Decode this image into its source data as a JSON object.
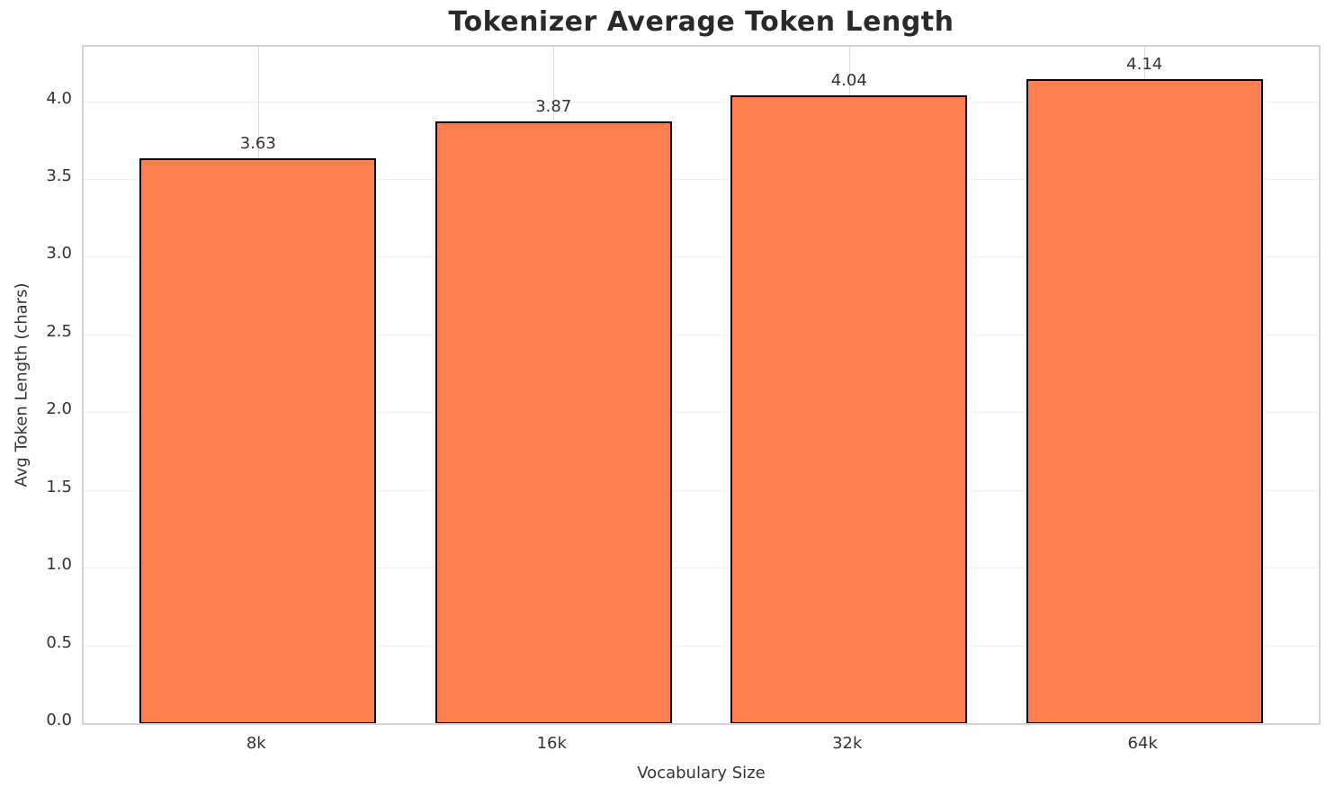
{
  "chart_data": {
    "type": "bar",
    "title": "Tokenizer Average Token Length",
    "xlabel": "Vocabulary Size",
    "ylabel": "Avg Token Length (chars)",
    "categories": [
      "8k",
      "16k",
      "32k",
      "64k"
    ],
    "values": [
      3.63,
      3.87,
      4.04,
      4.14
    ],
    "value_labels": [
      "3.63",
      "3.87",
      "4.04",
      "4.14"
    ],
    "ylim": [
      0,
      4.35
    ],
    "yticks": [
      0.0,
      0.5,
      1.0,
      1.5,
      2.0,
      2.5,
      3.0,
      3.5,
      4.0
    ],
    "ytick_labels": [
      "0.0",
      "0.5",
      "1.0",
      "1.5",
      "2.0",
      "2.5",
      "3.0",
      "3.5",
      "4.0"
    ],
    "x_axis_range": [
      -0.59,
      3.59
    ],
    "bar_width_data_units": 0.8,
    "grid": true,
    "legend": null,
    "colors": {
      "bar_fill": "#FF7F50",
      "bar_edge": "#000000",
      "grid_horizontal": "#EFEFEF",
      "grid_vertical": "#DCDCDC",
      "spine": "#D4D4D4",
      "text": "#333333",
      "title": "#2A2A2A",
      "background": "#FFFFFF"
    }
  }
}
